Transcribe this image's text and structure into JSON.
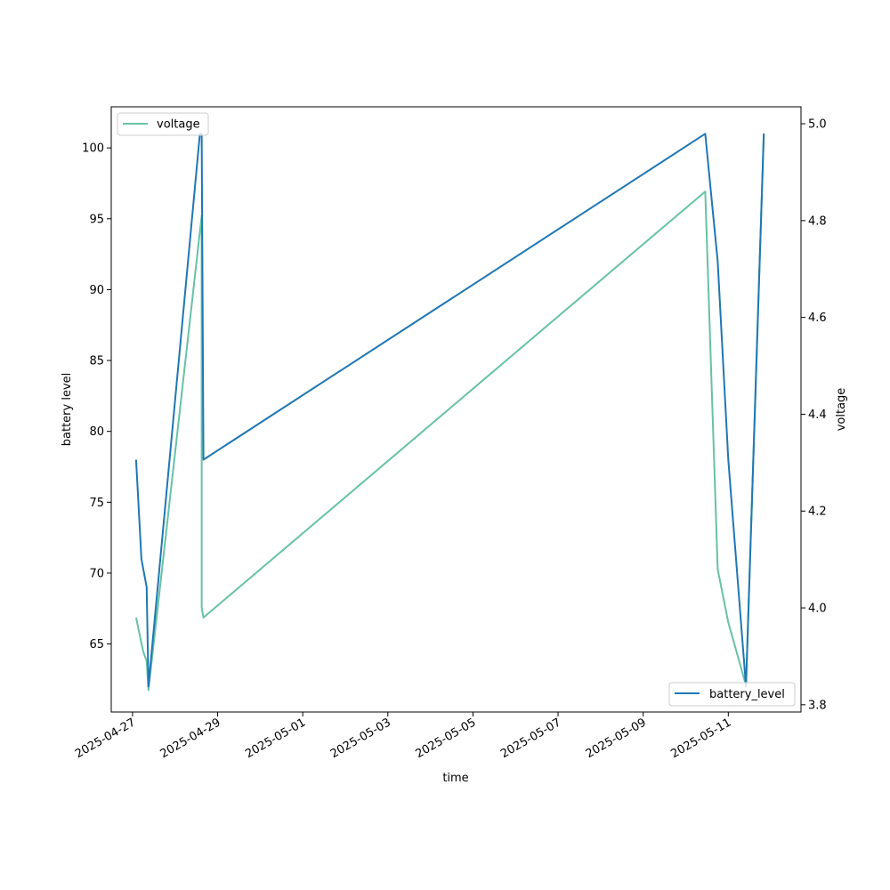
{
  "chart_data": {
    "type": "line",
    "title": "",
    "xlabel": "time",
    "ylabel_left": "battery level",
    "ylabel_right": "voltage",
    "x_tick_labels": [
      "2025-04-27",
      "2025-04-29",
      "2025-05-01",
      "2025-05-03",
      "2025-05-05",
      "2025-05-07",
      "2025-05-09",
      "2025-05-11"
    ],
    "y_left_ticks": [
      65,
      70,
      75,
      80,
      85,
      90,
      95,
      100
    ],
    "y_right_ticks": [
      "3.8",
      "4.0",
      "4.2",
      "4.4",
      "4.6",
      "4.8",
      "5.0"
    ],
    "y_left_lim": [
      60.2,
      102.9
    ],
    "y_right_lim": [
      3.785,
      5.035
    ],
    "x_lim": [
      "2025-04-26 12:00",
      "2025-05-12 17:00"
    ],
    "grid": false,
    "series": [
      {
        "name": "battery_level",
        "axis": "left",
        "color": "#1f77b4",
        "legend_position": "lower-right",
        "points": [
          {
            "x": "2025-04-27 02:00",
            "y": 78
          },
          {
            "x": "2025-04-27 05:00",
            "y": 71
          },
          {
            "x": "2025-04-27 08:00",
            "y": 69
          },
          {
            "x": "2025-04-27 09:00",
            "y": 62
          },
          {
            "x": "2025-04-28 14:00",
            "y": 101
          },
          {
            "x": "2025-04-28 15:00",
            "y": 101
          },
          {
            "x": "2025-04-28 16:00",
            "y": 78
          },
          {
            "x": "2025-05-10 11:00",
            "y": 101
          },
          {
            "x": "2025-05-10 18:00",
            "y": 92
          },
          {
            "x": "2025-05-11 00:00",
            "y": 78
          },
          {
            "x": "2025-05-11 10:00",
            "y": 62
          },
          {
            "x": "2025-05-11 20:00",
            "y": 101
          }
        ]
      },
      {
        "name": "voltage",
        "axis": "right",
        "color": "#66c2a5",
        "legend_position": "upper-left",
        "points": [
          {
            "x": "2025-04-27 02:00",
            "y": 3.98
          },
          {
            "x": "2025-04-27 06:00",
            "y": 3.91
          },
          {
            "x": "2025-04-27 08:00",
            "y": 3.89
          },
          {
            "x": "2025-04-27 09:00",
            "y": 3.83
          },
          {
            "x": "2025-04-28 15:00",
            "y": 4.81
          },
          {
            "x": "2025-04-28 15:00",
            "y": 4.0
          },
          {
            "x": "2025-04-28 16:00",
            "y": 3.98
          },
          {
            "x": "2025-05-10 11:00",
            "y": 4.86
          },
          {
            "x": "2025-05-10 18:00",
            "y": 4.08
          },
          {
            "x": "2025-05-11 00:00",
            "y": 3.97
          },
          {
            "x": "2025-05-11 10:00",
            "y": 3.84
          },
          {
            "x": "2025-05-11 20:00",
            "y": 4.98
          }
        ]
      }
    ]
  }
}
